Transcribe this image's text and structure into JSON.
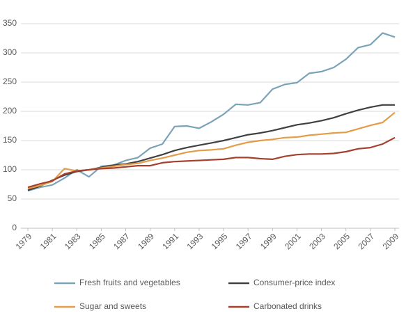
{
  "chart_data": {
    "type": "line",
    "x": [
      1979,
      1980,
      1981,
      1982,
      1983,
      1984,
      1985,
      1986,
      1987,
      1988,
      1989,
      1990,
      1991,
      1992,
      1993,
      1994,
      1995,
      1996,
      1997,
      1998,
      1999,
      2000,
      2001,
      2002,
      2003,
      2004,
      2005,
      2006,
      2007,
      2008,
      2009
    ],
    "xlim": [
      1979,
      2009
    ],
    "xticks": [
      1979,
      1981,
      1983,
      1985,
      1987,
      1989,
      1991,
      1993,
      1995,
      1997,
      1999,
      2001,
      2003,
      2005,
      2007,
      2009
    ],
    "ylim": [
      0,
      350
    ],
    "yticks": [
      0,
      50,
      100,
      150,
      200,
      250,
      300,
      350
    ],
    "grid": true,
    "legend": "bottom",
    "series": [
      {
        "name": "Fresh fruits and vegetables",
        "color": "#7ba3b8",
        "values": [
          64,
          70,
          74,
          86,
          100,
          88,
          106,
          108,
          116,
          121,
          137,
          144,
          174,
          175,
          171,
          182,
          195,
          212,
          211,
          215,
          238,
          246,
          249,
          265,
          268,
          275,
          289,
          309,
          314,
          334,
          327
        ]
      },
      {
        "name": "Consumer-price index",
        "color": "#404040",
        "values": [
          65,
          72,
          82,
          91,
          97,
          100,
          104,
          108,
          110,
          114,
          120,
          126,
          133,
          138,
          142,
          146,
          150,
          155,
          160,
          163,
          167,
          172,
          177,
          180,
          184,
          189,
          196,
          202,
          207,
          211,
          211
        ]
      },
      {
        "name": "Sugar and sweets",
        "color": "#e39c48",
        "values": [
          68,
          73,
          80,
          102,
          98,
          100,
          103,
          106,
          109,
          111,
          116,
          120,
          125,
          130,
          133,
          134,
          136,
          142,
          147,
          150,
          152,
          155,
          156,
          159,
          161,
          163,
          164,
          170,
          176,
          181,
          198
        ]
      },
      {
        "name": "Carbonated drinks",
        "color": "#a5402e",
        "values": [
          70,
          76,
          81,
          93,
          98,
          100,
          102,
          103,
          105,
          107,
          107,
          112,
          114,
          115,
          116,
          117,
          118,
          121,
          121,
          119,
          118,
          123,
          126,
          127,
          127,
          128,
          131,
          136,
          138,
          144,
          155
        ]
      }
    ]
  }
}
